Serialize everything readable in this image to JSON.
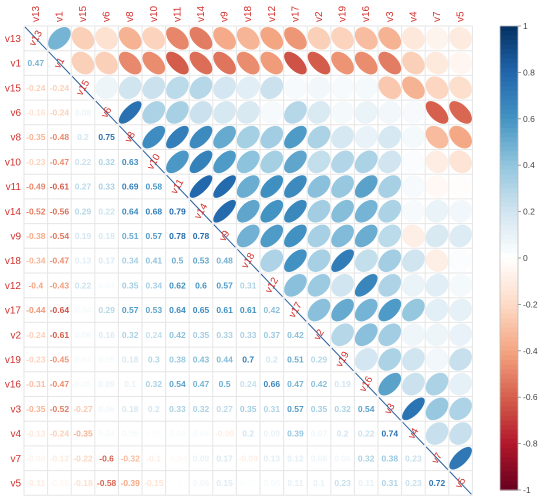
{
  "chart_data": {
    "type": "heatmap",
    "variables": [
      "v13",
      "v1",
      "v15",
      "v6",
      "v8",
      "v10",
      "v11",
      "v14",
      "v9",
      "v18",
      "v12",
      "v17",
      "v2",
      "v19",
      "v16",
      "v3",
      "v4",
      "v7",
      "v5"
    ],
    "row_labels": [
      "v13",
      "v1",
      "v15",
      "v6",
      "v8",
      "v10",
      "v11",
      "v14",
      "v9",
      "v18",
      "v12",
      "v17",
      "v2",
      "v19",
      "v16",
      "v3",
      "v4",
      "v7",
      "v5"
    ],
    "col_labels": [
      "v13",
      "v1",
      "v15",
      "v6",
      "v8",
      "v10",
      "v11",
      "v14",
      "v9",
      "v18",
      "v12",
      "v17",
      "v2",
      "v19",
      "v16",
      "v3",
      "v4",
      "v7",
      "v5"
    ],
    "lower_method": "number",
    "upper_method": "ellipse",
    "lower_triangle": [
      [
        0.47
      ],
      [
        -0.24,
        -0.24
      ],
      [
        -0.16,
        -0.24,
        0.08
      ],
      [
        -0.35,
        -0.48,
        0.2,
        0.75
      ],
      [
        -0.23,
        -0.47,
        0.22,
        0.32,
        0.63
      ],
      [
        -0.49,
        -0.61,
        0.27,
        0.33,
        0.69,
        0.58
      ],
      [
        -0.52,
        -0.56,
        0.29,
        0.22,
        0.64,
        0.68,
        0.79
      ],
      [
        -0.38,
        -0.54,
        0.19,
        0.18,
        0.51,
        0.57,
        0.78,
        0.78
      ],
      [
        -0.34,
        -0.47,
        0.13,
        0.17,
        0.34,
        0.41,
        0.5,
        0.53,
        0.48
      ],
      [
        -0.4,
        -0.43,
        0.22,
        0.04,
        0.35,
        0.34,
        0.62,
        0.6,
        0.57,
        0.31
      ],
      [
        -0.44,
        -0.64,
        0.04,
        0.29,
        0.57,
        0.53,
        0.64,
        0.65,
        0.61,
        0.61,
        0.42
      ],
      [
        -0.24,
        -0.61,
        0.06,
        0.16,
        0.32,
        0.24,
        0.42,
        0.35,
        0.33,
        0.33,
        0.37,
        0.42
      ],
      [
        -0.23,
        -0.45,
        0.04,
        0.05,
        0.18,
        0.3,
        0.38,
        0.43,
        0.44,
        0.7,
        0.2,
        0.51,
        0.29
      ],
      [
        -0.31,
        -0.47,
        0.05,
        0.09,
        0.1,
        0.32,
        0.54,
        0.47,
        0.5,
        0.24,
        0.66,
        0.47,
        0.42,
        0.19
      ],
      [
        -0.35,
        -0.52,
        -0.27,
        0.06,
        0.18,
        0.2,
        0.33,
        0.32,
        0.27,
        0.35,
        0.31,
        0.57,
        0.35,
        0.32,
        0.54
      ],
      [
        -0.13,
        -0.24,
        -0.35,
        0.04,
        0.05,
        0.02,
        0.04,
        0.04,
        -0.09,
        0.2,
        0.09,
        0.39,
        0.07,
        0.2,
        0.22,
        0.74
      ],
      [
        -0.06,
        -0.12,
        -0.22,
        -0.6,
        -0.32,
        -0.1,
        -0.04,
        0.09,
        0.17,
        -0.09,
        0.13,
        0.12,
        0.08,
        0.06,
        0.32,
        0.38,
        0.23
      ],
      [
        -0.11,
        -0.05,
        -0.18,
        -0.58,
        -0.39,
        -0.15,
        -0.01,
        0.06,
        0.15,
        0.02,
        0.05,
        0.11,
        0.1,
        0.23,
        0.11,
        0.31,
        0.23,
        0.72
      ]
    ],
    "colorbar": {
      "range": [
        -1,
        1
      ],
      "ticks": [
        1,
        0.8,
        0.6,
        0.4,
        0.2,
        0,
        -0.2,
        -0.4,
        -0.6,
        -0.8,
        -1
      ],
      "tick_labels": [
        "1",
        "0.8",
        "0.6",
        "0.4",
        "0.2",
        "0",
        "-0.2",
        "-0.4",
        "-0.6",
        "-0.8",
        "-1"
      ],
      "position": "right"
    },
    "colors": {
      "positive": "#053061",
      "negative": "#67001f",
      "neutral": "#ffffff",
      "label": "#d0312d",
      "grid": "#e6e6e6"
    }
  }
}
